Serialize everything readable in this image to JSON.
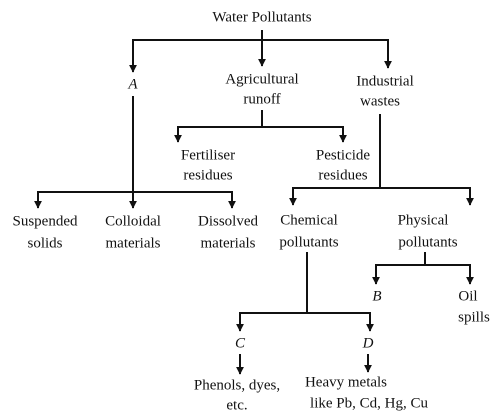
{
  "title": "Water Pollutants",
  "nodes": [
    {
      "lines": [
        "A"
      ]
    },
    {
      "lines": [
        "Agricultural",
        "runoff"
      ]
    },
    {
      "lines": [
        "Industrial",
        "wastes"
      ]
    },
    {
      "lines": [
        "Fertiliser",
        "residues"
      ]
    },
    {
      "lines": [
        "Pesticide",
        "residues"
      ]
    },
    {
      "lines": [
        "Suspended",
        "solids"
      ]
    },
    {
      "lines": [
        "Colloidal",
        "materials"
      ]
    },
    {
      "lines": [
        "Dissolved",
        "materials"
      ]
    },
    {
      "lines": [
        "Chemical",
        "pollutants"
      ]
    },
    {
      "lines": [
        "Physical",
        "pollutants"
      ]
    },
    {
      "lines": [
        "B"
      ]
    },
    {
      "lines": [
        "Oil",
        "spills"
      ]
    },
    {
      "lines": [
        "C"
      ]
    },
    {
      "lines": [
        "D"
      ]
    },
    {
      "lines": [
        "Phenols, dyes,",
        "etc."
      ]
    },
    {
      "lines": [
        "Heavy metals",
        "like Pb, Cd, Hg, Cu"
      ]
    }
  ]
}
